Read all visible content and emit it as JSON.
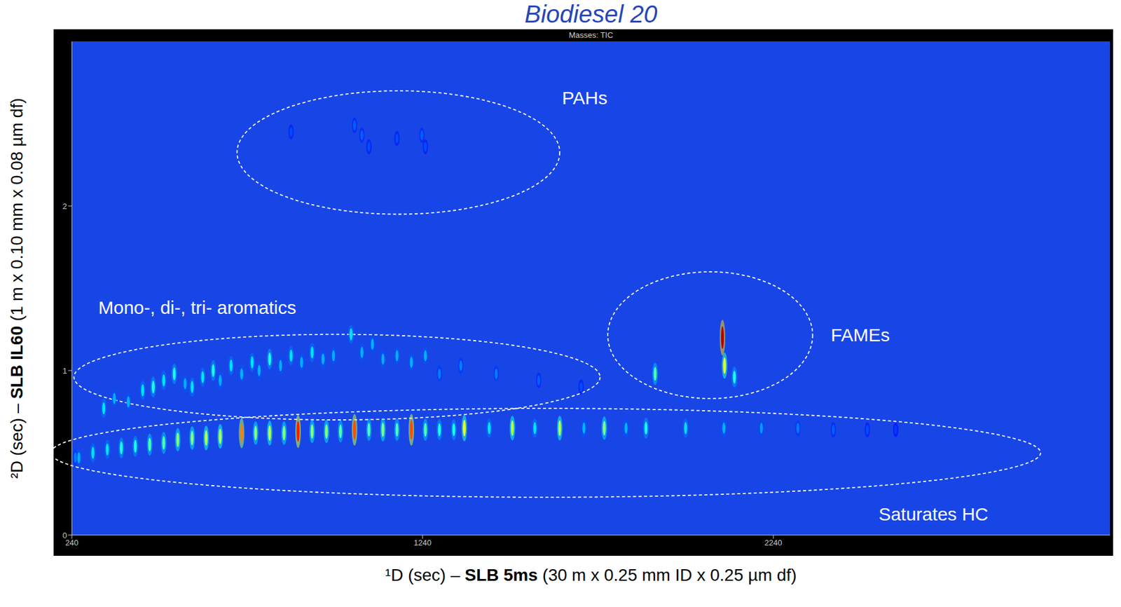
{
  "chart_data": {
    "type": "scatter",
    "title": "Biodiesel 20",
    "subtitle": "Masses: TIC",
    "x_label": "¹D (sec) – SLB 5ms (30 m x 0.25 mm ID x 0.25 µm df)",
    "y_label": "²D (sec) – SLB IL60 (1 m x 0.10 mm x 0.08 µm df)",
    "xlim": [
      240,
      3200
    ],
    "xticks": [
      240,
      1240,
      2240
    ],
    "ylim": [
      0,
      3
    ],
    "yticks": [
      0,
      1,
      2
    ],
    "regions": [
      {
        "label": "PAHs",
        "x": [
          711,
          1631
        ],
        "y": [
          1.95,
          2.7
        ]
      },
      {
        "label": "Mono-, di-, tri- aromatics",
        "x": [
          246,
          1746
        ],
        "y": [
          0.7,
          1.22
        ]
      },
      {
        "label": "FAMEs",
        "x": [
          1768,
          2352
        ],
        "y": [
          0.83,
          1.6
        ]
      },
      {
        "label": "Saturates HC",
        "x": [
          180,
          3002
        ],
        "y": [
          0.23,
          0.77
        ]
      }
    ],
    "peaks": [
      {
        "x": 250,
        "y": 0.47,
        "intensity": 0.25
      },
      {
        "x": 260,
        "y": 0.47,
        "intensity": 0.3
      },
      {
        "x": 300,
        "y": 0.5,
        "intensity": 0.35
      },
      {
        "x": 341,
        "y": 0.52,
        "intensity": 0.35
      },
      {
        "x": 381,
        "y": 0.53,
        "intensity": 0.4
      },
      {
        "x": 421,
        "y": 0.54,
        "intensity": 0.4
      },
      {
        "x": 462,
        "y": 0.55,
        "intensity": 0.45
      },
      {
        "x": 502,
        "y": 0.56,
        "intensity": 0.45
      },
      {
        "x": 542,
        "y": 0.58,
        "intensity": 0.5
      },
      {
        "x": 583,
        "y": 0.59,
        "intensity": 0.5
      },
      {
        "x": 623,
        "y": 0.59,
        "intensity": 0.55
      },
      {
        "x": 663,
        "y": 0.6,
        "intensity": 0.55
      },
      {
        "x": 724,
        "y": 0.62,
        "intensity": 0.75
      },
      {
        "x": 764,
        "y": 0.62,
        "intensity": 0.5
      },
      {
        "x": 804,
        "y": 0.62,
        "intensity": 0.55
      },
      {
        "x": 845,
        "y": 0.62,
        "intensity": 0.5
      },
      {
        "x": 885,
        "y": 0.63,
        "intensity": 0.85
      },
      {
        "x": 925,
        "y": 0.63,
        "intensity": 0.5
      },
      {
        "x": 966,
        "y": 0.63,
        "intensity": 0.5
      },
      {
        "x": 1006,
        "y": 0.63,
        "intensity": 0.45
      },
      {
        "x": 1046,
        "y": 0.64,
        "intensity": 0.8
      },
      {
        "x": 1087,
        "y": 0.64,
        "intensity": 0.45
      },
      {
        "x": 1127,
        "y": 0.64,
        "intensity": 0.5
      },
      {
        "x": 1167,
        "y": 0.64,
        "intensity": 0.45
      },
      {
        "x": 1208,
        "y": 0.64,
        "intensity": 0.8
      },
      {
        "x": 1248,
        "y": 0.64,
        "intensity": 0.45
      },
      {
        "x": 1288,
        "y": 0.64,
        "intensity": 0.4
      },
      {
        "x": 1329,
        "y": 0.64,
        "intensity": 0.4
      },
      {
        "x": 1359,
        "y": 0.65,
        "intensity": 0.6
      },
      {
        "x": 1430,
        "y": 0.65,
        "intensity": 0.35
      },
      {
        "x": 1496,
        "y": 0.65,
        "intensity": 0.55
      },
      {
        "x": 1560,
        "y": 0.65,
        "intensity": 0.35
      },
      {
        "x": 1631,
        "y": 0.65,
        "intensity": 0.55
      },
      {
        "x": 1700,
        "y": 0.65,
        "intensity": 0.3
      },
      {
        "x": 1758,
        "y": 0.65,
        "intensity": 0.5
      },
      {
        "x": 1820,
        "y": 0.65,
        "intensity": 0.3
      },
      {
        "x": 1877,
        "y": 0.65,
        "intensity": 0.4
      },
      {
        "x": 1990,
        "y": 0.65,
        "intensity": 0.35
      },
      {
        "x": 2099,
        "y": 0.65,
        "intensity": 0.3
      },
      {
        "x": 2206,
        "y": 0.65,
        "intensity": 0.28
      },
      {
        "x": 2310,
        "y": 0.65,
        "intensity": 0.25
      },
      {
        "x": 2411,
        "y": 0.64,
        "intensity": 0.22
      },
      {
        "x": 2508,
        "y": 0.64,
        "intensity": 0.2
      },
      {
        "x": 2589,
        "y": 0.64,
        "intensity": 0.18
      },
      {
        "x": 331,
        "y": 0.77,
        "intensity": 0.35
      },
      {
        "x": 361,
        "y": 0.83,
        "intensity": 0.3
      },
      {
        "x": 401,
        "y": 0.81,
        "intensity": 0.3
      },
      {
        "x": 442,
        "y": 0.88,
        "intensity": 0.35
      },
      {
        "x": 472,
        "y": 0.9,
        "intensity": 0.4
      },
      {
        "x": 502,
        "y": 0.94,
        "intensity": 0.35
      },
      {
        "x": 532,
        "y": 0.98,
        "intensity": 0.4
      },
      {
        "x": 563,
        "y": 0.92,
        "intensity": 0.3
      },
      {
        "x": 583,
        "y": 0.9,
        "intensity": 0.35
      },
      {
        "x": 613,
        "y": 0.96,
        "intensity": 0.35
      },
      {
        "x": 643,
        "y": 1.0,
        "intensity": 0.4
      },
      {
        "x": 663,
        "y": 0.94,
        "intensity": 0.3
      },
      {
        "x": 694,
        "y": 1.03,
        "intensity": 0.35
      },
      {
        "x": 724,
        "y": 0.98,
        "intensity": 0.3
      },
      {
        "x": 754,
        "y": 1.05,
        "intensity": 0.35
      },
      {
        "x": 774,
        "y": 1.0,
        "intensity": 0.3
      },
      {
        "x": 804,
        "y": 1.07,
        "intensity": 0.4
      },
      {
        "x": 835,
        "y": 1.03,
        "intensity": 0.3
      },
      {
        "x": 865,
        "y": 1.09,
        "intensity": 0.35
      },
      {
        "x": 895,
        "y": 1.05,
        "intensity": 0.3
      },
      {
        "x": 925,
        "y": 1.11,
        "intensity": 0.35
      },
      {
        "x": 956,
        "y": 1.07,
        "intensity": 0.3
      },
      {
        "x": 986,
        "y": 1.09,
        "intensity": 0.3
      },
      {
        "x": 1036,
        "y": 1.22,
        "intensity": 0.35
      },
      {
        "x": 1067,
        "y": 1.11,
        "intensity": 0.3
      },
      {
        "x": 1097,
        "y": 1.16,
        "intensity": 0.3
      },
      {
        "x": 1127,
        "y": 1.07,
        "intensity": 0.3
      },
      {
        "x": 1167,
        "y": 1.09,
        "intensity": 0.3
      },
      {
        "x": 1208,
        "y": 1.05,
        "intensity": 0.3
      },
      {
        "x": 1248,
        "y": 1.09,
        "intensity": 0.3
      },
      {
        "x": 1288,
        "y": 0.98,
        "intensity": 0.25
      },
      {
        "x": 1349,
        "y": 1.03,
        "intensity": 0.25
      },
      {
        "x": 1450,
        "y": 0.98,
        "intensity": 0.25
      },
      {
        "x": 1571,
        "y": 0.94,
        "intensity": 0.22
      },
      {
        "x": 1692,
        "y": 0.9,
        "intensity": 0.2
      },
      {
        "x": 865,
        "y": 2.45,
        "intensity": 0.2
      },
      {
        "x": 1046,
        "y": 2.49,
        "intensity": 0.22
      },
      {
        "x": 1067,
        "y": 2.43,
        "intensity": 0.22
      },
      {
        "x": 1087,
        "y": 2.36,
        "intensity": 0.2
      },
      {
        "x": 1167,
        "y": 2.41,
        "intensity": 0.2
      },
      {
        "x": 1238,
        "y": 2.43,
        "intensity": 0.22
      },
      {
        "x": 1248,
        "y": 2.36,
        "intensity": 0.2
      },
      {
        "x": 1903,
        "y": 0.98,
        "intensity": 0.45
      },
      {
        "x": 2095,
        "y": 1.2,
        "intensity": 0.95
      },
      {
        "x": 2101,
        "y": 1.03,
        "intensity": 0.6
      },
      {
        "x": 2129,
        "y": 0.96,
        "intensity": 0.4
      }
    ]
  }
}
